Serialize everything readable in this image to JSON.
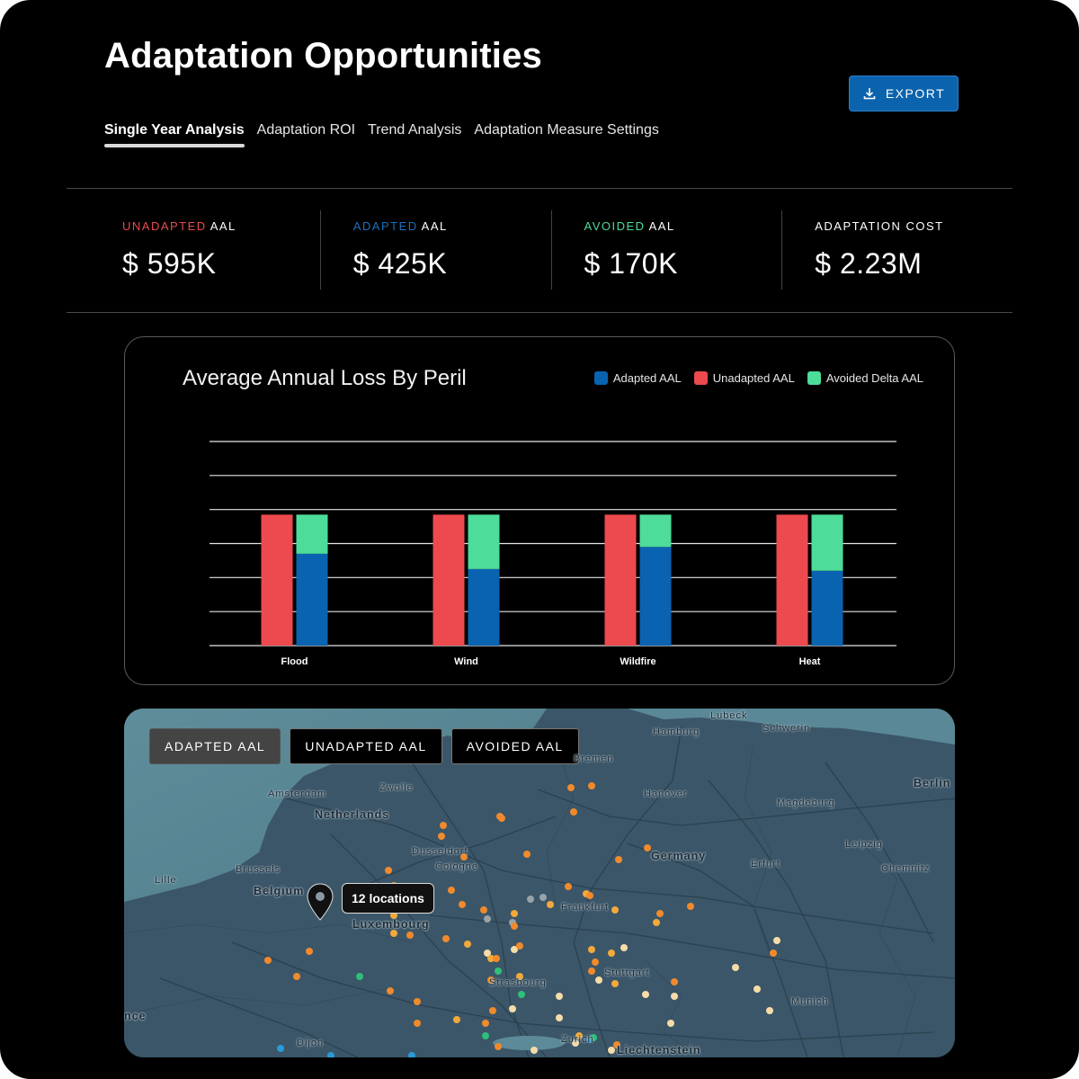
{
  "header": {
    "title": "Adaptation Opportunities",
    "export_label": "EXPORT"
  },
  "tabs": [
    {
      "label": "Single Year Analysis",
      "active": true
    },
    {
      "label": "Adaptation ROI",
      "active": false
    },
    {
      "label": "Trend Analysis",
      "active": false
    },
    {
      "label": "Adaptation Measure Settings",
      "active": false
    }
  ],
  "kpis": [
    {
      "highlight": "UNADAPTED",
      "rest": "AAL",
      "highlight_color": "#e84b4b",
      "value": "$ 595K"
    },
    {
      "highlight": "ADAPTED",
      "rest": "AAL",
      "highlight_color": "#1e6fb8",
      "value": "$ 425K"
    },
    {
      "highlight": "AVOIDED",
      "rest": "AAL",
      "highlight_color": "#4ddc99",
      "value": "$ 170K"
    },
    {
      "highlight": "",
      "rest": "ADAPTATION COST",
      "highlight_color": "#ffffff",
      "value": "$ 2.23M"
    }
  ],
  "colors": {
    "adapted": "#0a63b0",
    "unadapted": "#ec4a4f",
    "avoided": "#4ddc99",
    "accent": "#0b63ad"
  },
  "chart_data": {
    "type": "bar",
    "title": "Average Annual Loss By Peril",
    "categories": [
      "Flood",
      "Wind",
      "Wildfire",
      "Heat"
    ],
    "series": [
      {
        "name": "Unadapted AAL",
        "values": [
          3.85,
          3.85,
          3.85,
          3.85
        ]
      },
      {
        "name": "Adapted AAL",
        "values": [
          2.7,
          2.25,
          2.9,
          2.2
        ]
      },
      {
        "name": "Avoided Delta AAL",
        "values": [
          1.15,
          1.6,
          0.95,
          1.65
        ]
      }
    ],
    "legend": [
      "Adapted AAL",
      "Unadapted AAL",
      "Avoided Delta AAL"
    ],
    "legend_position": "top-right",
    "stacked_series": [
      "Adapted AAL",
      "Avoided Delta AAL"
    ],
    "ylim": [
      0,
      6
    ],
    "grid": true,
    "xlabel": "",
    "ylabel": ""
  },
  "map": {
    "toggles": [
      {
        "label": "ADAPTED AAL",
        "active": true
      },
      {
        "label": "UNADAPTED AAL",
        "active": false
      },
      {
        "label": "AVOIDED AAL",
        "active": false
      }
    ],
    "tooltip": "12 locations",
    "labels": [
      {
        "text": "Lubeck",
        "big": false
      },
      {
        "text": "Hamburg",
        "big": false
      },
      {
        "text": "Schwerin",
        "big": false
      },
      {
        "text": "Bremen",
        "big": false
      },
      {
        "text": "Berlin",
        "big": true
      },
      {
        "text": "Amsterdam",
        "big": false
      },
      {
        "text": "Zwolle",
        "big": false
      },
      {
        "text": "Hanover",
        "big": false
      },
      {
        "text": "Magdeburg",
        "big": false
      },
      {
        "text": "Netherlands",
        "big": true
      },
      {
        "text": "Dusseldorf",
        "big": false
      },
      {
        "text": "Germany",
        "big": true
      },
      {
        "text": "Leipzig",
        "big": false
      },
      {
        "text": "Brussels",
        "big": false
      },
      {
        "text": "Cologne",
        "big": false
      },
      {
        "text": "Erfurt",
        "big": false
      },
      {
        "text": "Chemnitz",
        "big": false
      },
      {
        "text": "Lille",
        "big": false
      },
      {
        "text": "Belgium",
        "big": true
      },
      {
        "text": "Frankfurt",
        "big": false
      },
      {
        "text": "Luxembourg",
        "big": true
      },
      {
        "text": "Stuttgart",
        "big": false
      },
      {
        "text": "Strasbourg",
        "big": false
      },
      {
        "text": "Munich",
        "big": false
      },
      {
        "text": "nce",
        "big": true
      },
      {
        "text": "Dijon",
        "big": false
      },
      {
        "text": "Zurich",
        "big": false
      },
      {
        "text": "Liechtenstein",
        "big": true
      }
    ]
  }
}
